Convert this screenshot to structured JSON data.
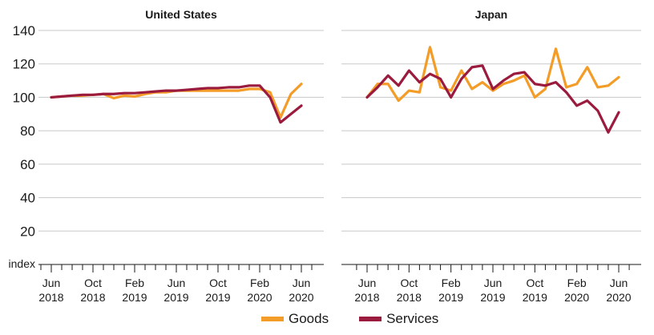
{
  "legend": {
    "goods": "Goods",
    "services": "Services"
  },
  "colors": {
    "goods": "#f39c28",
    "services": "#9b1b3f",
    "grid": "#c8c8c8",
    "axis": "#1a1a1a"
  },
  "chart_data": {
    "type": "line",
    "y_unit": "index",
    "ylim": [
      0,
      140
    ],
    "yticks": [
      20,
      40,
      60,
      80,
      100,
      120,
      140
    ],
    "x_tick_labels": [
      [
        "Jun",
        "2018"
      ],
      [
        "Oct",
        "2018"
      ],
      [
        "Feb",
        "2019"
      ],
      [
        "Jun",
        "2019"
      ],
      [
        "Oct",
        "2019"
      ],
      [
        "Feb",
        "2020"
      ],
      [
        "Jun",
        "2020"
      ]
    ],
    "x_months": [
      "Jun 2018",
      "Jul 2018",
      "Aug 2018",
      "Sep 2018",
      "Oct 2018",
      "Nov 2018",
      "Dec 2018",
      "Jan 2019",
      "Feb 2019",
      "Mar 2019",
      "Apr 2019",
      "May 2019",
      "Jun 2019",
      "Jul 2019",
      "Aug 2019",
      "Sep 2019",
      "Oct 2019",
      "Nov 2019",
      "Dec 2019",
      "Jan 2020",
      "Feb 2020",
      "Mar 2020",
      "Apr 2020",
      "May 2020",
      "Jun 2020"
    ],
    "panels": [
      {
        "title": "United States",
        "series": [
          {
            "name": "Goods",
            "values": [
              100,
              100.5,
              101,
              101,
              101.5,
              102,
              99.5,
              101,
              100.5,
              102,
              103,
              103,
              104,
              104,
              104,
              104,
              104,
              104,
              104,
              105,
              105,
              103,
              88,
              102,
              108
            ]
          },
          {
            "name": "Services",
            "values": [
              100,
              100.5,
              101,
              101.5,
              101.5,
              102,
              102,
              102.5,
              102.5,
              103,
              103.5,
              104,
              104,
              104.5,
              105,
              105.5,
              105.5,
              106,
              106,
              107,
              107,
              100,
              85,
              90,
              95
            ]
          }
        ]
      },
      {
        "title": "Japan",
        "series": [
          {
            "name": "Goods",
            "values": [
              100,
              108,
              108,
              98,
              104,
              103,
              130,
              106,
              104,
              116,
              105,
              109,
              104,
              108,
              110,
              113,
              100,
              105,
              129,
              106,
              108,
              118,
              106,
              107,
              112
            ]
          },
          {
            "name": "Services",
            "values": [
              100,
              106,
              113,
              107,
              116,
              109,
              114,
              111,
              100,
              111,
              118,
              119,
              105,
              110,
              114,
              115,
              108,
              107,
              109,
              103,
              95,
              98,
              92,
              79,
              91
            ]
          }
        ]
      }
    ]
  }
}
